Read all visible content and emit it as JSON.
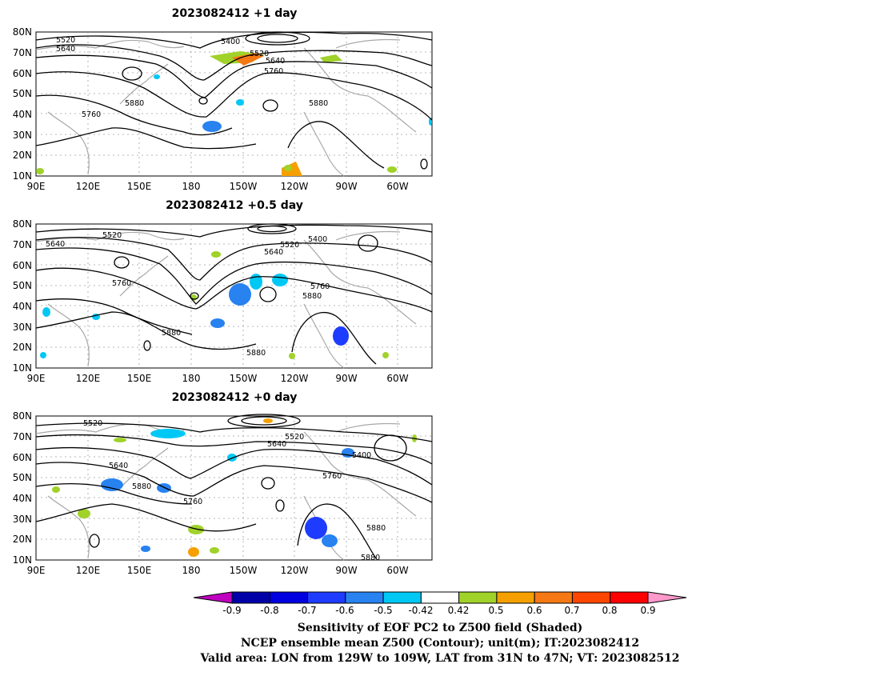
{
  "panels": [
    {
      "title": "2023082412  +1 day",
      "contour_labels": [
        "5520",
        "5640",
        "5400",
        "5520",
        "5640",
        "5760",
        "5760",
        "5880",
        "5880"
      ]
    },
    {
      "title": "2023082412  +0.5 day",
      "contour_labels": [
        "5520",
        "5640",
        "5520",
        "5400",
        "5640",
        "5760",
        "5760",
        "5880",
        "5880",
        "5880"
      ]
    },
    {
      "title": "2023082412  +0 day",
      "contour_labels": [
        "5520",
        "5520",
        "5640",
        "5400",
        "5640",
        "5880",
        "5760",
        "5760",
        "5880",
        "5880"
      ]
    }
  ],
  "axes": {
    "lat_ticks": [
      "80N",
      "70N",
      "60N",
      "50N",
      "40N",
      "30N",
      "20N",
      "10N"
    ],
    "lon_ticks": [
      "90E",
      "120E",
      "150E",
      "180",
      "150W",
      "120W",
      "90W",
      "60W"
    ]
  },
  "colorbar": {
    "labels": [
      "-0.9",
      "-0.8",
      "-0.7",
      "-0.6",
      "-0.5",
      "-0.42",
      "0.42",
      "0.5",
      "0.6",
      "0.7",
      "0.8",
      "0.9"
    ],
    "colors": {
      "lower_triangle": "#c000c0",
      "boxes": [
        "#0000a8",
        "#0000e0",
        "#1e3cff",
        "#2882f0",
        "#00c8f5",
        "#ffffff",
        "#a0d22a",
        "#f5a000",
        "#f57814",
        "#ff4600",
        "#ff0000"
      ],
      "upper_triangle": "#ff99cc"
    }
  },
  "captions": [
    "Sensitivity of EOF PC2 to Z500 field (Shaded)",
    "NCEP ensemble mean Z500 (Contour); unit(m); IT:2023082412",
    "Valid area: LON from 129W to 109W, LAT from 31N to 47N; VT: 2023082512"
  ],
  "style_colors": {
    "contour": "#000000",
    "coastline": "#a0a0a0",
    "grid": "#a0a0a0"
  }
}
